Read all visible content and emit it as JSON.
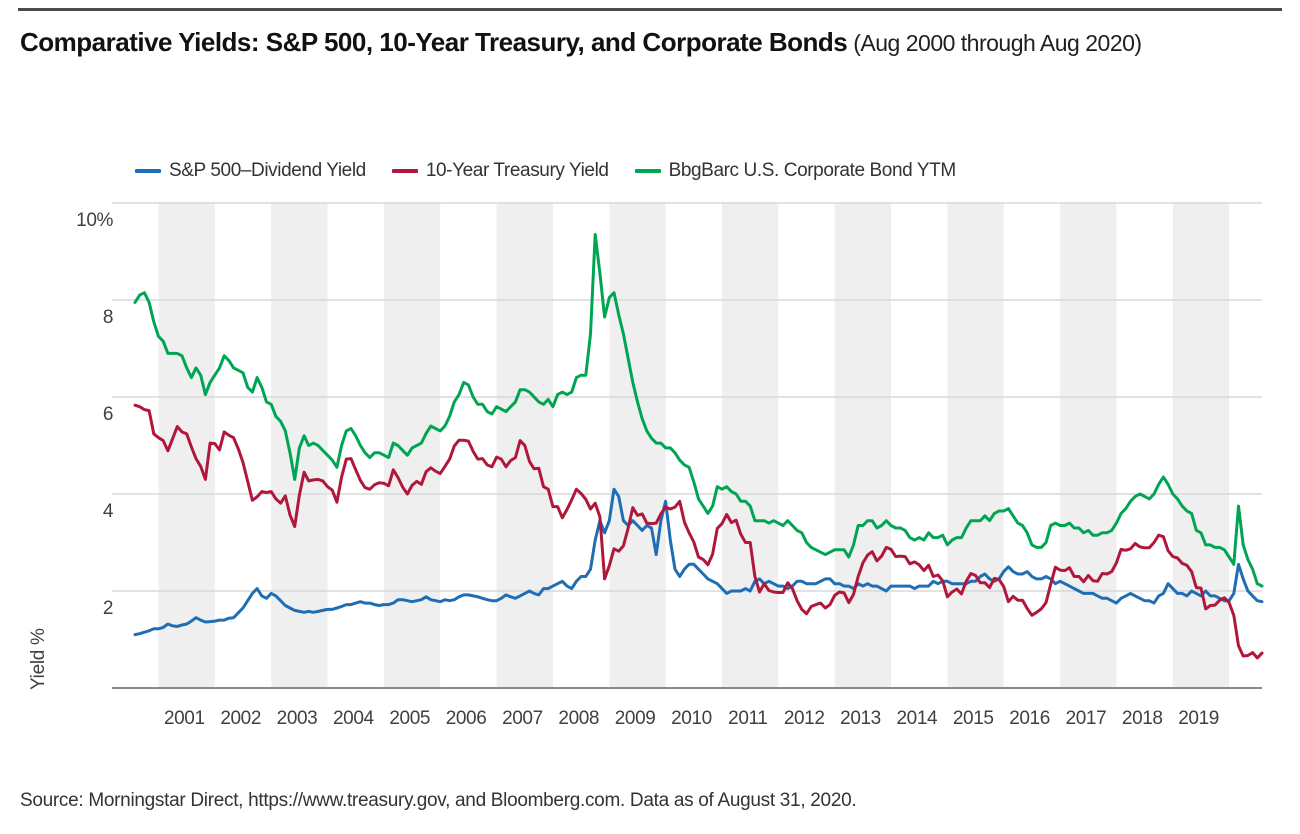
{
  "page": {
    "title_bold": "Comparative Yields: S&P 500, 10-Year Treasury, and Corporate Bonds",
    "title_note": "(Aug 2000 through Aug 2020)",
    "source": "Source: Morningstar Direct, https://www.treasury.gov, and Bloomberg.com. Data as of August 31, 2020."
  },
  "chart_data": {
    "type": "line",
    "title": "Comparative Yields: S&P 500, 10-Year Treasury, and Corporate Bonds (Aug 2000 through Aug 2020)",
    "xlabel": "",
    "ylabel": "Yield %",
    "x_start": "2000-08",
    "x_end": "2020-08",
    "x_frequency": "monthly",
    "ylim": [
      0,
      10
    ],
    "y_ticks": [
      2,
      4,
      6,
      8,
      10
    ],
    "y_tick_labels": [
      "2",
      "4",
      "6",
      "8",
      "10%"
    ],
    "x_tick_labels": [
      "2001",
      "2002",
      "2003",
      "2004",
      "2005",
      "2006",
      "2007",
      "2008",
      "2009",
      "2010",
      "2011",
      "2012",
      "2013",
      "2014",
      "2015",
      "2016",
      "2017",
      "2018",
      "2019"
    ],
    "shaded_band_years": [
      2001,
      2003,
      2005,
      2007,
      2009,
      2011,
      2013,
      2015,
      2017,
      2019
    ],
    "grid": "horizontal",
    "legend_position": "top",
    "colors": {
      "band": "#efefef",
      "gridline": "#d9d9d9",
      "axis": "#8a8a8a",
      "tick_text": "#404040",
      "sp500": "#1f6eb4",
      "treasury": "#b0173a",
      "corporate": "#00a553"
    },
    "series": [
      {
        "name": "S&P 500–Dividend Yield",
        "color": "#1f6eb4",
        "values": [
          1.1,
          1.12,
          1.15,
          1.18,
          1.22,
          1.22,
          1.25,
          1.32,
          1.28,
          1.27,
          1.3,
          1.32,
          1.38,
          1.45,
          1.4,
          1.36,
          1.37,
          1.38,
          1.4,
          1.4,
          1.44,
          1.45,
          1.55,
          1.65,
          1.8,
          1.95,
          2.05,
          1.9,
          1.85,
          1.95,
          1.9,
          1.8,
          1.7,
          1.65,
          1.6,
          1.58,
          1.56,
          1.58,
          1.56,
          1.58,
          1.6,
          1.62,
          1.62,
          1.65,
          1.68,
          1.72,
          1.72,
          1.75,
          1.78,
          1.75,
          1.75,
          1.72,
          1.7,
          1.72,
          1.72,
          1.75,
          1.82,
          1.82,
          1.8,
          1.78,
          1.8,
          1.82,
          1.88,
          1.82,
          1.8,
          1.78,
          1.82,
          1.8,
          1.82,
          1.88,
          1.92,
          1.92,
          1.9,
          1.88,
          1.85,
          1.82,
          1.8,
          1.8,
          1.85,
          1.92,
          1.88,
          1.85,
          1.9,
          1.95,
          2.0,
          1.95,
          1.92,
          2.05,
          2.05,
          2.1,
          2.15,
          2.2,
          2.1,
          2.05,
          2.2,
          2.3,
          2.3,
          2.45,
          3.05,
          3.45,
          3.2,
          3.45,
          4.1,
          3.95,
          3.45,
          3.35,
          3.45,
          3.35,
          3.25,
          3.35,
          3.3,
          2.75,
          3.45,
          3.85,
          3.05,
          2.45,
          2.3,
          2.45,
          2.55,
          2.55,
          2.45,
          2.35,
          2.25,
          2.2,
          2.15,
          2.05,
          1.95,
          2.0,
          2.0,
          2.0,
          2.05,
          2.0,
          2.2,
          2.25,
          2.15,
          2.2,
          2.15,
          2.1,
          2.1,
          2.05,
          2.1,
          2.2,
          2.2,
          2.15,
          2.15,
          2.15,
          2.2,
          2.25,
          2.25,
          2.15,
          2.15,
          2.1,
          2.1,
          2.05,
          2.15,
          2.1,
          2.15,
          2.1,
          2.1,
          2.05,
          2.0,
          2.1,
          2.1,
          2.1,
          2.1,
          2.1,
          2.05,
          2.1,
          2.1,
          2.1,
          2.2,
          2.15,
          2.2,
          2.2,
          2.15,
          2.15,
          2.15,
          2.15,
          2.2,
          2.2,
          2.3,
          2.35,
          2.25,
          2.2,
          2.25,
          2.4,
          2.5,
          2.4,
          2.35,
          2.35,
          2.4,
          2.3,
          2.25,
          2.25,
          2.3,
          2.25,
          2.15,
          2.2,
          2.15,
          2.1,
          2.05,
          2.0,
          1.95,
          1.95,
          1.95,
          1.9,
          1.85,
          1.85,
          1.8,
          1.75,
          1.85,
          1.9,
          1.95,
          1.9,
          1.85,
          1.8,
          1.8,
          1.75,
          1.9,
          1.95,
          2.15,
          2.05,
          1.95,
          1.95,
          1.9,
          2.0,
          1.95,
          1.9,
          2.0,
          1.9,
          1.9,
          1.85,
          1.8,
          1.8,
          1.95,
          2.55,
          2.25,
          2.0,
          1.9,
          1.8,
          1.78
        ]
      },
      {
        "name": "10-Year Treasury Yield",
        "color": "#b0173a",
        "values": [
          5.83,
          5.8,
          5.74,
          5.72,
          5.24,
          5.16,
          5.1,
          4.89,
          5.14,
          5.39,
          5.28,
          5.24,
          4.97,
          4.73,
          4.57,
          4.3,
          5.05,
          5.04,
          4.91,
          5.28,
          5.21,
          5.16,
          4.93,
          4.65,
          4.26,
          3.87,
          3.94,
          4.05,
          4.03,
          4.05,
          3.9,
          3.81,
          3.96,
          3.57,
          3.33,
          3.98,
          4.45,
          4.27,
          4.29,
          4.3,
          4.27,
          4.15,
          4.08,
          3.83,
          4.35,
          4.72,
          4.73,
          4.5,
          4.28,
          4.13,
          4.1,
          4.19,
          4.23,
          4.22,
          4.17,
          4.5,
          4.34,
          4.14,
          4.0,
          4.18,
          4.26,
          4.2,
          4.46,
          4.54,
          4.47,
          4.42,
          4.57,
          4.72,
          4.99,
          5.11,
          5.11,
          5.09,
          4.88,
          4.72,
          4.73,
          4.6,
          4.56,
          4.76,
          4.72,
          4.56,
          4.69,
          4.75,
          5.1,
          5.0,
          4.67,
          4.52,
          4.53,
          4.15,
          4.1,
          3.74,
          3.74,
          3.51,
          3.68,
          3.88,
          4.1,
          4.01,
          3.89,
          3.69,
          3.81,
          3.53,
          2.25,
          2.52,
          2.87,
          2.82,
          2.93,
          3.29,
          3.72,
          3.56,
          3.59,
          3.4,
          3.39,
          3.4,
          3.59,
          3.73,
          3.69,
          3.73,
          3.85,
          3.42,
          3.2,
          3.01,
          2.7,
          2.65,
          2.54,
          2.76,
          3.29,
          3.39,
          3.58,
          3.41,
          3.46,
          3.17,
          3.0,
          3.0,
          2.3,
          1.98,
          2.15,
          2.01,
          1.98,
          1.97,
          1.97,
          2.17,
          2.05,
          1.8,
          1.62,
          1.53,
          1.68,
          1.72,
          1.75,
          1.65,
          1.72,
          1.91,
          1.98,
          1.96,
          1.76,
          1.93,
          2.3,
          2.58,
          2.74,
          2.81,
          2.62,
          2.72,
          2.9,
          2.86,
          2.71,
          2.72,
          2.71,
          2.56,
          2.6,
          2.54,
          2.42,
          2.53,
          2.3,
          2.33,
          2.21,
          1.88,
          1.98,
          2.04,
          1.94,
          2.2,
          2.36,
          2.32,
          2.17,
          2.17,
          2.07,
          2.26,
          2.24,
          2.09,
          1.78,
          1.89,
          1.81,
          1.81,
          1.64,
          1.5,
          1.56,
          1.63,
          1.76,
          2.14,
          2.49,
          2.43,
          2.42,
          2.48,
          2.3,
          2.3,
          2.19,
          2.32,
          2.21,
          2.2,
          2.36,
          2.35,
          2.4,
          2.58,
          2.86,
          2.84,
          2.87,
          2.98,
          2.91,
          2.89,
          2.89,
          3.0,
          3.15,
          3.12,
          2.83,
          2.71,
          2.68,
          2.57,
          2.53,
          2.4,
          2.07,
          2.06,
          1.63,
          1.7,
          1.71,
          1.81,
          1.86,
          1.76,
          1.5,
          0.87,
          0.66,
          0.67,
          0.73,
          0.62,
          0.72
        ]
      },
      {
        "name": "BbgBarc U.S. Corporate Bond YTM",
        "color": "#00a553",
        "values": [
          7.95,
          8.1,
          8.15,
          7.95,
          7.55,
          7.25,
          7.15,
          6.9,
          6.9,
          6.9,
          6.85,
          6.6,
          6.4,
          6.6,
          6.45,
          6.05,
          6.3,
          6.45,
          6.6,
          6.85,
          6.75,
          6.6,
          6.55,
          6.5,
          6.2,
          6.1,
          6.4,
          6.2,
          5.9,
          5.85,
          5.6,
          5.5,
          5.3,
          4.85,
          4.3,
          4.95,
          5.2,
          5.0,
          5.05,
          5.0,
          4.9,
          4.8,
          4.7,
          4.55,
          5.0,
          5.3,
          5.35,
          5.2,
          5.0,
          4.85,
          4.75,
          4.85,
          4.85,
          4.8,
          4.75,
          5.05,
          5.0,
          4.9,
          4.8,
          4.95,
          5.0,
          5.05,
          5.25,
          5.4,
          5.35,
          5.3,
          5.4,
          5.6,
          5.9,
          6.05,
          6.3,
          6.25,
          6.0,
          5.85,
          5.85,
          5.7,
          5.65,
          5.8,
          5.75,
          5.7,
          5.8,
          5.9,
          6.15,
          6.15,
          6.1,
          6.0,
          5.9,
          5.85,
          5.95,
          5.8,
          6.05,
          6.1,
          6.05,
          6.1,
          6.4,
          6.45,
          6.45,
          7.3,
          9.35,
          8.55,
          7.65,
          8.05,
          8.15,
          7.7,
          7.3,
          6.8,
          6.3,
          5.9,
          5.55,
          5.3,
          5.15,
          5.05,
          5.05,
          4.95,
          4.95,
          4.85,
          4.7,
          4.6,
          4.55,
          4.25,
          3.9,
          3.75,
          3.6,
          3.75,
          4.15,
          4.1,
          4.15,
          4.05,
          4.0,
          3.85,
          3.85,
          3.75,
          3.45,
          3.45,
          3.45,
          3.4,
          3.45,
          3.4,
          3.35,
          3.45,
          3.35,
          3.25,
          3.2,
          3.0,
          2.9,
          2.85,
          2.8,
          2.75,
          2.8,
          2.85,
          2.85,
          2.85,
          2.7,
          2.95,
          3.35,
          3.35,
          3.45,
          3.45,
          3.3,
          3.35,
          3.45,
          3.35,
          3.3,
          3.3,
          3.25,
          3.1,
          3.05,
          3.1,
          3.05,
          3.2,
          3.1,
          3.1,
          3.15,
          2.95,
          3.05,
          3.1,
          3.1,
          3.3,
          3.45,
          3.45,
          3.45,
          3.55,
          3.45,
          3.6,
          3.65,
          3.65,
          3.7,
          3.55,
          3.4,
          3.35,
          3.2,
          2.95,
          2.9,
          2.9,
          3.0,
          3.35,
          3.4,
          3.35,
          3.35,
          3.4,
          3.3,
          3.3,
          3.2,
          3.25,
          3.15,
          3.15,
          3.2,
          3.2,
          3.25,
          3.4,
          3.6,
          3.7,
          3.85,
          3.95,
          4.0,
          3.95,
          3.9,
          4.0,
          4.2,
          4.35,
          4.2,
          4.0,
          3.9,
          3.75,
          3.65,
          3.6,
          3.25,
          3.2,
          2.95,
          2.95,
          2.9,
          2.9,
          2.85,
          2.7,
          2.55,
          3.75,
          2.95,
          2.65,
          2.45,
          2.15,
          2.1
        ]
      }
    ]
  }
}
